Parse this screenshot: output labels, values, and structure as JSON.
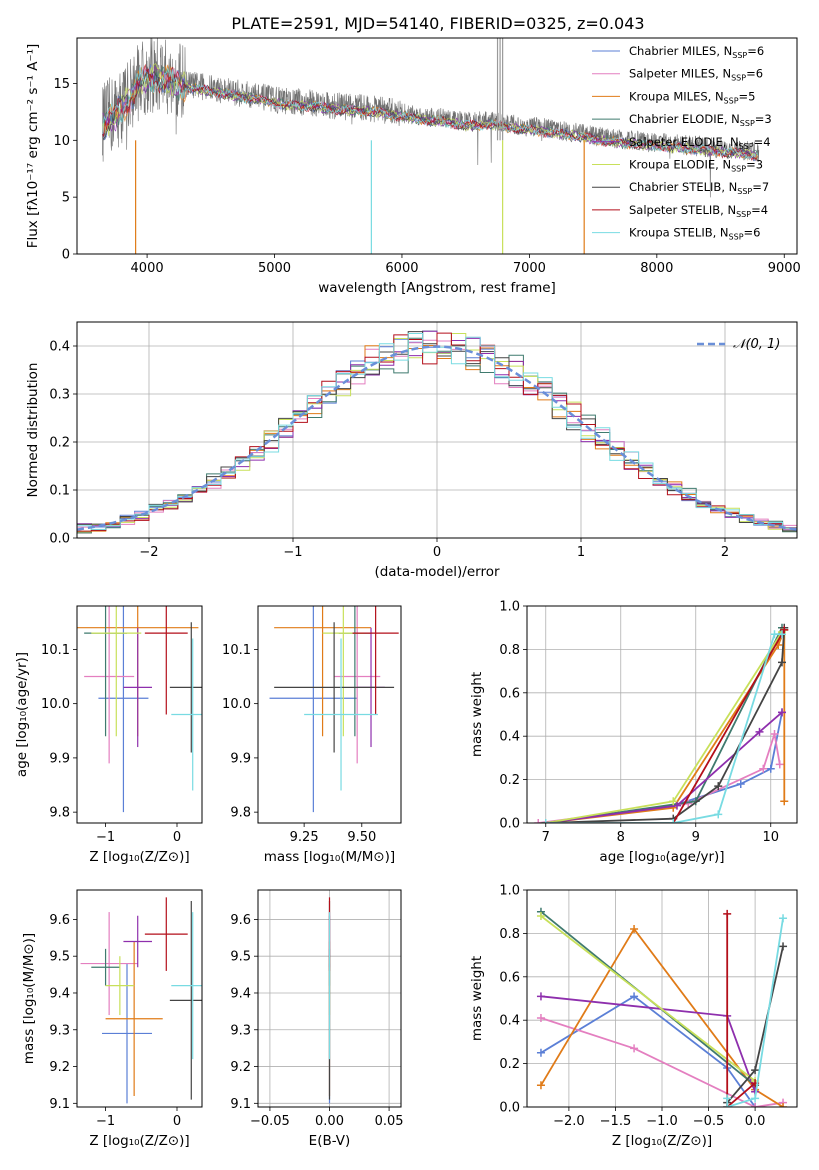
{
  "page_title": "PLATE=2591, MJD=54140, FIBERID=0325, z=0.043",
  "colors": {
    "chabrier_miles": "#5b7fd6",
    "salpeter_miles": "#e47fc0",
    "kroupa_miles": "#e07b18",
    "chabrier_elodie": "#3f7a6e",
    "salpeter_elodie": "#8e2fad",
    "kroupa_elodie": "#c8e05a",
    "chabrier_stelib": "#444444",
    "salpeter_stelib": "#b30f1a",
    "kroupa_stelib": "#78dbe2",
    "normal_curve": "#6a8fd8"
  },
  "legend_models": [
    {
      "base": "Chabrier MILES, N",
      "sub": "SSP",
      "val": "=6",
      "color": "#5b7fd6"
    },
    {
      "base": "Salpeter MILES, N",
      "sub": "SSP",
      "val": "=6",
      "color": "#e47fc0"
    },
    {
      "base": "Kroupa MILES, N",
      "sub": "SSP",
      "val": "=5",
      "color": "#e07b18"
    },
    {
      "base": "Chabrier ELODIE, N",
      "sub": "SSP",
      "val": "=3",
      "color": "#3f7a6e"
    },
    {
      "base": "Salpeter ELODIE, N",
      "sub": "SSP",
      "val": "=4",
      "color": "#8e2fad"
    },
    {
      "base": "Kroupa ELODIE, N",
      "sub": "SSP",
      "val": "=3",
      "color": "#c8e05a"
    },
    {
      "base": "Chabrier STELIB, N",
      "sub": "SSP",
      "val": "=7",
      "color": "#444444"
    },
    {
      "base": "Salpeter STELIB, N",
      "sub": "SSP",
      "val": "=4",
      "color": "#b30f1a"
    },
    {
      "base": "Kroupa STELIB, N",
      "sub": "SSP",
      "val": "=6",
      "color": "#78dbe2"
    }
  ],
  "chart_data": [
    {
      "id": "spectrum",
      "type": "line",
      "xlabel": "wavelength [Angstrom, rest frame]",
      "ylabel": "Flux [fλ10⁻¹⁷ erg cm⁻² s⁻¹ A⁻¹]",
      "xlim": [
        3450,
        9100
      ],
      "ylim": [
        0,
        19
      ],
      "xticks": [
        4000,
        5000,
        6000,
        7000,
        8000,
        9000
      ],
      "yticks": [
        0,
        5,
        10,
        15
      ],
      "observed_envelope": {
        "x": [
          3650,
          3800,
          3950,
          4100,
          4300,
          4500,
          4700,
          4900,
          5100,
          5300,
          5500,
          5700,
          5900,
          6100,
          6300,
          6500,
          6700,
          6900,
          7100,
          7300,
          7500,
          7700,
          7900,
          8100,
          8300,
          8500,
          8700,
          8800
        ],
        "y": [
          11.5,
          13.0,
          15.5,
          15.8,
          15.0,
          14.6,
          14.2,
          13.8,
          13.4,
          13.3,
          13.0,
          12.9,
          12.6,
          12.2,
          12.0,
          11.6,
          11.7,
          11.3,
          11.1,
          10.8,
          10.4,
          10.1,
          9.9,
          9.7,
          9.5,
          9.3,
          9.1,
          8.9
        ]
      },
      "spike_lines": [
        {
          "x": 6750,
          "y": 19
        },
        {
          "x": 6770,
          "y": 19
        },
        {
          "x": 6790,
          "y": 19
        }
      ],
      "model_drops": [
        {
          "x": 3910,
          "color": "#e07b18"
        },
        {
          "x": 5760,
          "color": "#78dbe2"
        },
        {
          "x": 6790,
          "color": "#c8e05a"
        },
        {
          "x": 7430,
          "color": "#e07b18"
        }
      ]
    },
    {
      "id": "residuals",
      "type": "histogram",
      "xlabel": "(data-model)/error",
      "ylabel": "Normed distribution",
      "xlim": [
        -2.5,
        2.5
      ],
      "ylim": [
        0,
        0.45
      ],
      "xticks": [
        -2,
        -1,
        0,
        1,
        2
      ],
      "yticks": [
        0.0,
        0.1,
        0.2,
        0.3,
        0.4
      ],
      "normal_label": "𝒩(0, 1)",
      "bin_width": 0.1
    },
    {
      "id": "age_vs_z",
      "type": "errorbar",
      "xlabel": "Z [log₁₀(Z/Z⊙)]",
      "ylabel": "age  [log₁₀(age/yr)]",
      "xlim": [
        -1.4,
        0.35
      ],
      "ylim": [
        9.78,
        10.18
      ],
      "xticks": [
        -1,
        0
      ],
      "yticks": [
        9.8,
        9.9,
        10.0,
        10.1
      ],
      "points": [
        {
          "x": -0.75,
          "xerr": 0.35,
          "y": 10.01,
          "yerr": 0.21,
          "color": "#5b7fd6"
        },
        {
          "x": -0.95,
          "xerr": 0.35,
          "y": 10.05,
          "yerr": 0.16,
          "color": "#e47fc0"
        },
        {
          "x": -0.55,
          "xerr": 0.85,
          "y": 10.14,
          "yerr": 0.2,
          "color": "#e07b18"
        },
        {
          "x": -1.0,
          "xerr": 0.3,
          "y": 10.13,
          "yerr": 0.19,
          "color": "#3f7a6e"
        },
        {
          "x": -0.55,
          "xerr": 0.2,
          "y": 10.03,
          "yerr": 0.11,
          "color": "#8e2fad"
        },
        {
          "x": -0.85,
          "xerr": 0.35,
          "y": 10.13,
          "yerr": 0.19,
          "color": "#c8e05a"
        },
        {
          "x": 0.2,
          "xerr": 0.3,
          "y": 10.03,
          "yerr": 0.12,
          "color": "#444444"
        },
        {
          "x": -0.15,
          "xerr": 0.3,
          "y": 10.13,
          "yerr": 0.15,
          "color": "#b30f1a"
        },
        {
          "x": 0.22,
          "xerr": 0.3,
          "y": 9.98,
          "yerr": 0.14,
          "color": "#78dbe2"
        }
      ]
    },
    {
      "id": "age_vs_mass",
      "type": "errorbar",
      "xlabel": "mass [log₁₀(M/M⊙)]",
      "ylabel": "",
      "xlim": [
        9.05,
        9.67
      ],
      "ylim": [
        9.78,
        10.18
      ],
      "xticks": [
        9.25,
        9.5
      ],
      "yticks": [
        9.8,
        9.9,
        10.0,
        10.1
      ],
      "points": [
        {
          "x": 9.29,
          "xerr": 0.19,
          "y": 10.01,
          "yerr": 0.21,
          "color": "#5b7fd6"
        },
        {
          "x": 9.48,
          "xerr": 0.1,
          "y": 10.05,
          "yerr": 0.16,
          "color": "#e47fc0"
        },
        {
          "x": 9.33,
          "xerr": 0.21,
          "y": 10.14,
          "yerr": 0.2,
          "color": "#e07b18"
        },
        {
          "x": 9.47,
          "xerr": 0.07,
          "y": 10.13,
          "yerr": 0.19,
          "color": "#3f7a6e"
        },
        {
          "x": 9.54,
          "xerr": 0.06,
          "y": 10.03,
          "yerr": 0.11,
          "color": "#8e2fad"
        },
        {
          "x": 9.42,
          "xerr": 0.09,
          "y": 10.13,
          "yerr": 0.19,
          "color": "#c8e05a"
        },
        {
          "x": 9.38,
          "xerr": 0.26,
          "y": 10.03,
          "yerr": 0.12,
          "color": "#444444"
        },
        {
          "x": 9.56,
          "xerr": 0.1,
          "y": 10.13,
          "yerr": 0.15,
          "color": "#b30f1a"
        },
        {
          "x": 9.41,
          "xerr": 0.16,
          "y": 9.98,
          "yerr": 0.14,
          "color": "#78dbe2"
        }
      ]
    },
    {
      "id": "mass_weight_vs_age",
      "type": "line",
      "xlabel": "age  [log₁₀(age/yr)]",
      "ylabel": "mass weight",
      "xlim": [
        6.75,
        10.35
      ],
      "ylim": [
        0,
        1
      ],
      "xticks": [
        7,
        8,
        9,
        10
      ],
      "yticks": [
        0.0,
        0.2,
        0.4,
        0.6,
        0.8,
        1.0
      ],
      "series": [
        {
          "color": "#5b7fd6",
          "x": [
            7.0,
            8.7,
            9.6,
            10.0,
            10.15
          ],
          "y": [
            0.0,
            0.08,
            0.18,
            0.25,
            0.51
          ]
        },
        {
          "color": "#e47fc0",
          "x": [
            6.9,
            8.9,
            9.9,
            10.05,
            10.12
          ],
          "y": [
            0.0,
            0.09,
            0.25,
            0.41,
            0.27
          ]
        },
        {
          "color": "#e07b18",
          "x": [
            7.0,
            8.7,
            10.1,
            10.18,
            10.18
          ],
          "y": [
            0.0,
            0.07,
            0.82,
            0.89,
            0.1
          ]
        },
        {
          "color": "#3f7a6e",
          "x": [
            7.0,
            9.0,
            10.15
          ],
          "y": [
            0.0,
            0.1,
            0.9
          ]
        },
        {
          "color": "#8e2fad",
          "x": [
            7.0,
            8.75,
            9.85,
            10.15
          ],
          "y": [
            0.0,
            0.08,
            0.42,
            0.51
          ]
        },
        {
          "color": "#c8e05a",
          "x": [
            7.0,
            8.7,
            10.15
          ],
          "y": [
            0.0,
            0.1,
            0.88
          ]
        },
        {
          "color": "#444444",
          "x": [
            7.0,
            8.7,
            9.3,
            10.15,
            10.18
          ],
          "y": [
            0.0,
            0.02,
            0.17,
            0.74,
            0.9
          ]
        },
        {
          "color": "#b30f1a",
          "x": [
            7.0,
            8.7,
            10.18
          ],
          "y": [
            0.0,
            0.0,
            0.89
          ]
        },
        {
          "color": "#78dbe2",
          "x": [
            7.0,
            8.7,
            9.3,
            10.05,
            10.15
          ],
          "y": [
            0.0,
            0.0,
            0.04,
            0.87,
            0.87
          ]
        }
      ]
    },
    {
      "id": "mass_vs_z",
      "type": "errorbar",
      "xlabel": "Z [log₁₀(Z/Z⊙)]",
      "ylabel": "mass [log₁₀(M/M⊙)]",
      "xlim": [
        -1.4,
        0.35
      ],
      "ylim": [
        9.09,
        9.68
      ],
      "xticks": [
        -1,
        0
      ],
      "yticks": [
        9.1,
        9.2,
        9.3,
        9.4,
        9.5,
        9.6
      ],
      "points": [
        {
          "x": -0.7,
          "xerr": 0.35,
          "y": 9.29,
          "yerr": 0.19,
          "color": "#5b7fd6"
        },
        {
          "x": -0.95,
          "xerr": 0.4,
          "y": 9.48,
          "yerr": 0.14,
          "color": "#e47fc0"
        },
        {
          "x": -0.6,
          "xerr": 0.4,
          "y": 9.33,
          "yerr": 0.21,
          "color": "#e07b18"
        },
        {
          "x": -1.0,
          "xerr": 0.2,
          "y": 9.47,
          "yerr": 0.05,
          "color": "#3f7a6e"
        },
        {
          "x": -0.55,
          "xerr": 0.2,
          "y": 9.54,
          "yerr": 0.07,
          "color": "#8e2fad"
        },
        {
          "x": -0.8,
          "xerr": 0.2,
          "y": 9.42,
          "yerr": 0.08,
          "color": "#c8e05a"
        },
        {
          "x": 0.2,
          "xerr": 0.3,
          "y": 9.38,
          "yerr": 0.27,
          "color": "#444444"
        },
        {
          "x": -0.15,
          "xerr": 0.3,
          "y": 9.56,
          "yerr": 0.1,
          "color": "#b30f1a"
        },
        {
          "x": 0.22,
          "xerr": 0.3,
          "y": 9.42,
          "yerr": 0.2,
          "color": "#78dbe2"
        }
      ]
    },
    {
      "id": "mass_vs_ebv",
      "type": "errorbar",
      "xlabel": "E(B-V)",
      "ylabel": "",
      "xlim": [
        -0.06,
        0.06
      ],
      "ylim": [
        9.09,
        9.68
      ],
      "xticks": [
        -0.05,
        0.0,
        0.05
      ],
      "yticks": [
        9.1,
        9.2,
        9.3,
        9.4,
        9.5,
        9.6
      ],
      "points": [
        {
          "x": 0.0,
          "xerr": 0.0,
          "y": 9.29,
          "yerr": 0.19,
          "color": "#5b7fd6"
        },
        {
          "x": 0.0,
          "xerr": 0.0,
          "y": 9.48,
          "yerr": 0.14,
          "color": "#e47fc0"
        },
        {
          "x": 0.0,
          "xerr": 0.0,
          "y": 9.33,
          "yerr": 0.21,
          "color": "#e07b18"
        },
        {
          "x": 0.0,
          "xerr": 0.0,
          "y": 9.47,
          "yerr": 0.05,
          "color": "#3f7a6e"
        },
        {
          "x": 0.0,
          "xerr": 0.0,
          "y": 9.54,
          "yerr": 0.07,
          "color": "#8e2fad"
        },
        {
          "x": 0.0,
          "xerr": 0.0,
          "y": 9.42,
          "yerr": 0.08,
          "color": "#c8e05a"
        },
        {
          "x": 0.0,
          "xerr": 0.0,
          "y": 9.38,
          "yerr": 0.27,
          "color": "#444444"
        },
        {
          "x": 0.0,
          "xerr": 0.0,
          "y": 9.56,
          "yerr": 0.1,
          "color": "#b30f1a"
        },
        {
          "x": 0.0,
          "xerr": 0.0,
          "y": 9.42,
          "yerr": 0.2,
          "color": "#78dbe2"
        }
      ]
    },
    {
      "id": "mass_weight_vs_z",
      "type": "line",
      "xlabel": "Z [log₁₀(Z/Z⊙)]",
      "ylabel": "mass weight",
      "xlim": [
        -2.45,
        0.45
      ],
      "ylim": [
        0,
        1
      ],
      "xticks": [
        -2.0,
        -1.5,
        -1.0,
        -0.5,
        0.0
      ],
      "yticks": [
        0.0,
        0.2,
        0.4,
        0.6,
        0.8,
        1.0
      ],
      "series": [
        {
          "color": "#5b7fd6",
          "x": [
            -2.3,
            -1.3,
            -0.3,
            0.0
          ],
          "y": [
            0.25,
            0.51,
            0.18,
            0.0
          ]
        },
        {
          "color": "#e47fc0",
          "x": [
            -2.3,
            -1.3,
            0.0,
            0.3
          ],
          "y": [
            0.41,
            0.27,
            0.0,
            0.02
          ]
        },
        {
          "color": "#e07b18",
          "x": [
            -2.3,
            -1.3,
            0.0,
            0.3
          ],
          "y": [
            0.1,
            0.82,
            0.08,
            0.0
          ]
        },
        {
          "color": "#3f7a6e",
          "x": [
            -2.3,
            0.0
          ],
          "y": [
            0.9,
            0.1
          ]
        },
        {
          "color": "#8e2fad",
          "x": [
            -2.3,
            -0.3,
            0.0
          ],
          "y": [
            0.51,
            0.42,
            0.07
          ]
        },
        {
          "color": "#c8e05a",
          "x": [
            -2.3,
            0.0
          ],
          "y": [
            0.88,
            0.12
          ]
        },
        {
          "color": "#444444",
          "x": [
            -0.3,
            0.0,
            0.3
          ],
          "y": [
            0.02,
            0.17,
            0.74
          ]
        },
        {
          "color": "#b30f1a",
          "x": [
            -0.3,
            -0.3,
            0.0
          ],
          "y": [
            0.89,
            0.0,
            0.11
          ]
        },
        {
          "color": "#78dbe2",
          "x": [
            -0.3,
            -0.3,
            0.0,
            0.3
          ],
          "y": [
            0.04,
            0.0,
            0.04,
            0.87
          ]
        }
      ]
    }
  ]
}
